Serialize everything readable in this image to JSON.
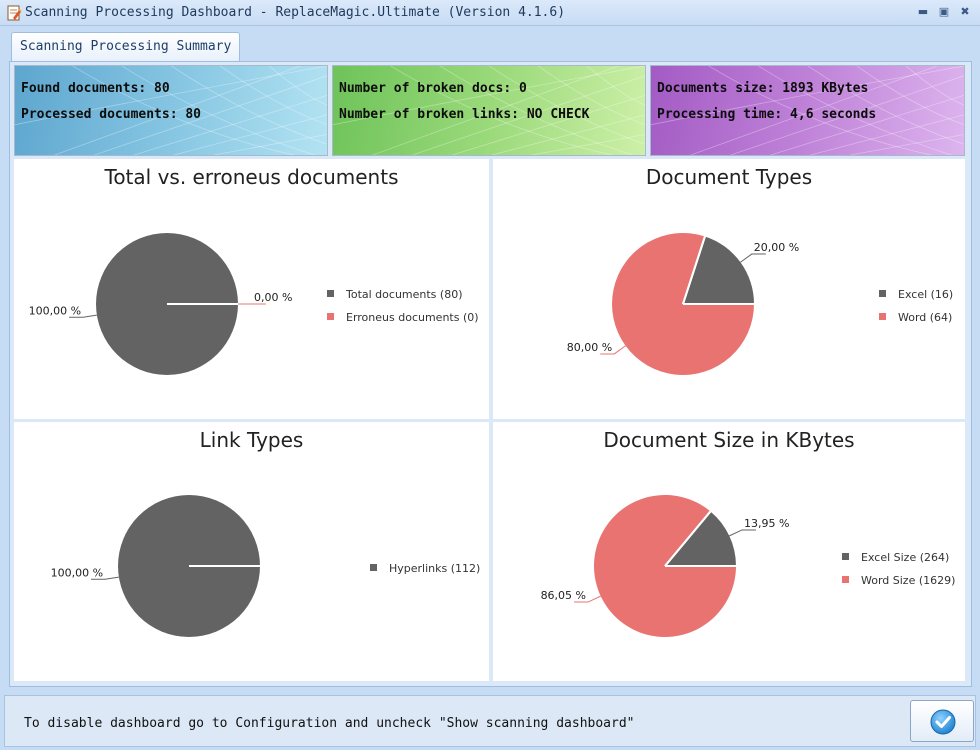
{
  "window": {
    "title": "Scanning Processing Dashboard - ReplaceMagic.Ultimate (Version 4.1.6)",
    "icon": "app-document-icon",
    "controls": [
      "minimize",
      "maximize",
      "close"
    ]
  },
  "tab": {
    "label": "Scanning Processing Summary"
  },
  "summary": {
    "found": "Found documents: 80",
    "processed": "Processed documents: 80",
    "broken_docs": "Number of broken docs: 0",
    "broken_links": "Number of broken links: NO CHECK",
    "size": "Documents size: 1893 KBytes",
    "time": "Processing time: 4,6 seconds"
  },
  "colors": {
    "dark": "#636363",
    "red": "#e87371"
  },
  "chart_data": [
    {
      "type": "pie",
      "title": "Total vs. erroneus documents",
      "labels": [
        "Total documents (80)",
        "Erroneus documents (0)"
      ],
      "values": [
        80,
        0
      ],
      "percent_labels": [
        "100,00 %",
        "0,00 %"
      ],
      "colors": [
        "#636363",
        "#e87371"
      ],
      "legend": "right"
    },
    {
      "type": "pie",
      "title": "Document Types",
      "labels": [
        "Excel (16)",
        "Word (64)"
      ],
      "values": [
        16,
        64
      ],
      "percent_labels": [
        "20,00 %",
        "80,00 %"
      ],
      "colors": [
        "#636363",
        "#e87371"
      ],
      "legend": "right"
    },
    {
      "type": "pie",
      "title": "Link Types",
      "labels": [
        "Hyperlinks (112)"
      ],
      "values": [
        112
      ],
      "percent_labels": [
        "100,00 %"
      ],
      "colors": [
        "#636363"
      ],
      "legend": "right"
    },
    {
      "type": "pie",
      "title": "Document Size in KBytes",
      "labels": [
        "Excel Size (264)",
        "Word Size (1629)"
      ],
      "values": [
        264,
        1629
      ],
      "percent_labels": [
        "13,95 %",
        "86,05 %"
      ],
      "colors": [
        "#636363",
        "#e87371"
      ],
      "legend": "right"
    }
  ],
  "footer": {
    "message": "To disable dashboard go to Configuration and uncheck \"Show scanning dashboard\"",
    "ok_icon": "check-circle-icon"
  }
}
